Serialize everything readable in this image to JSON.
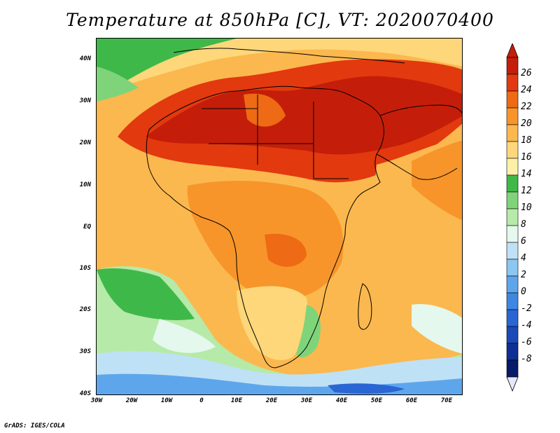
{
  "title": "Temperature at 850hPa [C], VT: 2020070400",
  "credit": "GrADS: IGES/COLA",
  "map": {
    "region": "Africa and Arabian Peninsula",
    "lat_range": [
      -40,
      45
    ],
    "lon_range": [
      -30,
      75
    ],
    "variable": "Temperature at 850hPa",
    "units": "C",
    "lat_ticks": [
      "40N",
      "30N",
      "20N",
      "10N",
      "EQ",
      "10S",
      "20S",
      "30S",
      "40S"
    ],
    "lon_ticks": [
      "30W",
      "20W",
      "10W",
      "0",
      "10E",
      "20E",
      "30E",
      "40E",
      "50E",
      "60E",
      "70E"
    ]
  },
  "colorbar": {
    "labels": [
      "26",
      "24",
      "22",
      "20",
      "18",
      "16",
      "14",
      "12",
      "10",
      "8",
      "6",
      "4",
      "2",
      "0",
      "-2",
      "-4",
      "-6",
      "-8"
    ],
    "colors": [
      "#c41e0a",
      "#e2390f",
      "#ee6a14",
      "#f7952a",
      "#fbb84e",
      "#fdd77a",
      "#fdf0a6",
      "#3fb84a",
      "#7fd47a",
      "#b6eaa8",
      "#e4f8ee",
      "#bfe1f6",
      "#8cc6f2",
      "#5ea6ec",
      "#3f86e2",
      "#2a65d4",
      "#1b49b8",
      "#0f2f94",
      "#081a6a"
    ],
    "over_color": "#c41e0a",
    "under_color": "#e6e8ff"
  }
}
